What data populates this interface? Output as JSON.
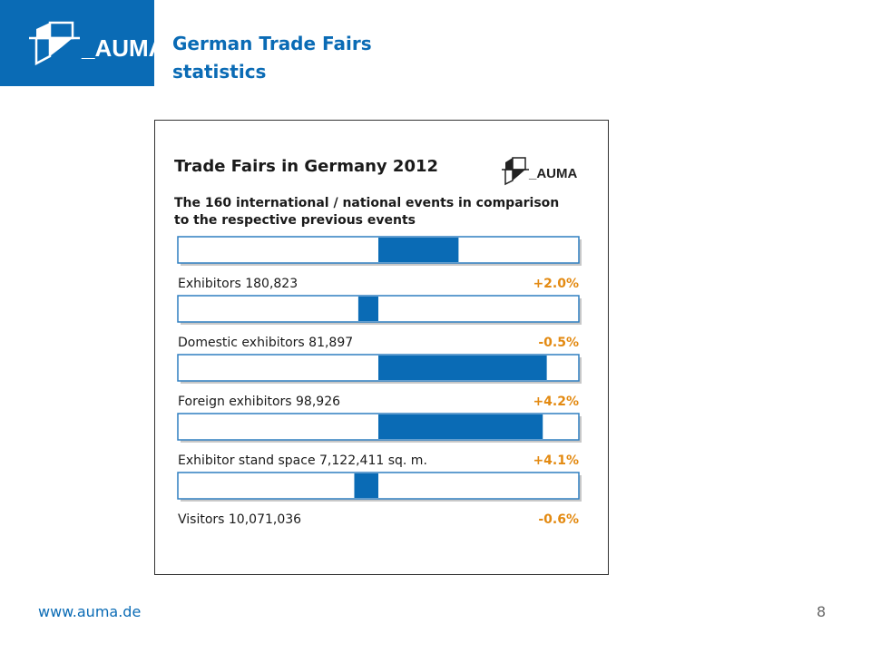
{
  "header": {
    "title_line1": "German Trade Fairs",
    "title_line2": "statistics",
    "brand": "_AUMA"
  },
  "footer": {
    "url": "www.auma.de",
    "page_number": "8"
  },
  "colors": {
    "brand_blue": "#0a6bb5",
    "change_orange": "#e38a12"
  },
  "chart_data": {
    "type": "bar",
    "title": "Trade Fairs in Germany 2012",
    "subtitle_line1": "The 160 international / national events in comparison",
    "subtitle_line2": "to the respective previous events",
    "brand": "_AUMA",
    "categories": [
      "Exhibitors 180,823",
      "Domestic exhibitors 81,897",
      "Foreign exhibitors 98,926",
      "Exhibitor stand space 7,122,411 sq. m.",
      "Visitors 10,071,036"
    ],
    "values": [
      2.0,
      -0.5,
      4.2,
      4.1,
      -0.6
    ],
    "value_labels": [
      "+2.0%",
      "-0.5%",
      "+4.2%",
      "+4.1%",
      "-0.6%"
    ],
    "xlim": [
      -5,
      5
    ],
    "grid": false,
    "legend": "none"
  }
}
